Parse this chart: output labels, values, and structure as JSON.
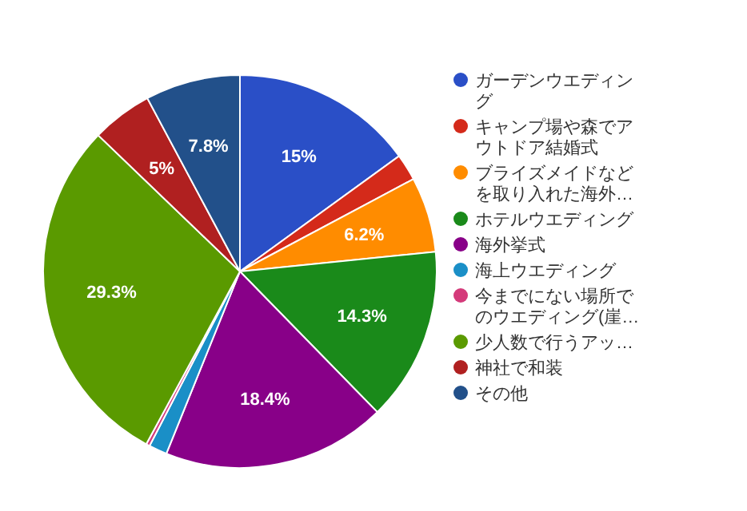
{
  "chart_data": {
    "type": "pie",
    "legend": "right",
    "categories": [
      "ガーデンウエディング",
      "キャンプ場や森でアウトドア結婚式",
      "ブライズメイドなどを取り入れた海外…",
      "ホテルウエディング",
      "海外挙式",
      "海上ウエディング",
      "今までにない場所でのウエディング(崖…",
      "少人数で行うアッ…",
      "神社で和装",
      "その他"
    ],
    "values": [
      15,
      2.2,
      6.2,
      14.3,
      18.4,
      1.5,
      0.3,
      29.3,
      5,
      7.8
    ],
    "colors": [
      "#2a4fc7",
      "#d42a1a",
      "#ff8c00",
      "#1a8a1a",
      "#880088",
      "#1a8fc7",
      "#d43a7a",
      "#5a9a00",
      "#b02020",
      "#22508a"
    ],
    "value_labels": [
      "15%",
      null,
      "6.2%",
      "14.3%",
      "18.4%",
      null,
      null,
      "29.3%",
      "5%",
      "7.8%"
    ]
  }
}
